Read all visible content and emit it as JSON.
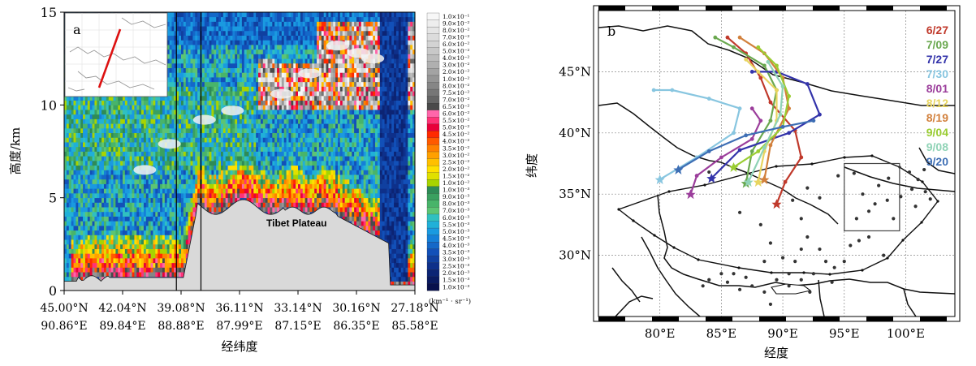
{
  "chart_data": [
    {
      "panel": "a",
      "type": "heatmap",
      "ylabel": "高度/km",
      "xlabel": "经纬度",
      "ylim": [
        0,
        15
      ],
      "y_ticks": [
        "0",
        "5",
        "10",
        "15"
      ],
      "x_ticks": [
        {
          "lat": "45.00°N",
          "lon": "90.86°E"
        },
        {
          "lat": "42.04°N",
          "lon": "89.84°E"
        },
        {
          "lat": "39.08°N",
          "lon": "88.88°E"
        },
        {
          "lat": "36.11°N",
          "lon": "87.99°E"
        },
        {
          "lat": "33.14°N",
          "lon": "87.15°E"
        },
        {
          "lat": "30.16°N",
          "lon": "86.35°E"
        },
        {
          "lat": "27.18°N",
          "lon": "85.58°E"
        }
      ],
      "annotation": "Tibet Plateau",
      "colorbar_unit": "(km⁻¹ · sr⁻¹)",
      "colorbar_levels": [
        {
          "label": "1.0×10⁻¹",
          "color": "#f7f7f7"
        },
        {
          "label": "9.0×10⁻²",
          "color": "#eeeeee"
        },
        {
          "label": "8.0×10⁻²",
          "color": "#e5e5e5"
        },
        {
          "label": "7.0×10⁻²",
          "color": "#dcdcdc"
        },
        {
          "label": "6.0×10⁻²",
          "color": "#d3d3d3"
        },
        {
          "label": "5.0×10⁻²",
          "color": "#c8c8c8"
        },
        {
          "label": "4.0×10⁻²",
          "color": "#bcbcbc"
        },
        {
          "label": "3.0×10⁻²",
          "color": "#b0b0b0"
        },
        {
          "label": "2.0×10⁻²",
          "color": "#a3a3a3"
        },
        {
          "label": "1.0×10⁻²",
          "color": "#959595"
        },
        {
          "label": "8.0×10⁻²",
          "color": "#868686"
        },
        {
          "label": "7.5×10⁻²",
          "color": "#767676"
        },
        {
          "label": "7.0×10⁻²",
          "color": "#656565"
        },
        {
          "label": "6.5×10⁻²",
          "color": "#4a4a4a"
        },
        {
          "label": "6.0×10⁻²",
          "color": "#ff66aa"
        },
        {
          "label": "5.5×10⁻²",
          "color": "#ff3377"
        },
        {
          "label": "5.0×10⁻²",
          "color": "#e8003a"
        },
        {
          "label": "4.5×10⁻²",
          "color": "#ff2a00"
        },
        {
          "label": "4.0×10⁻²",
          "color": "#ff5a00"
        },
        {
          "label": "3.5×10⁻²",
          "color": "#ff8000"
        },
        {
          "label": "3.0×10⁻²",
          "color": "#ffa000"
        },
        {
          "label": "2.5×10⁻²",
          "color": "#ffc000"
        },
        {
          "label": "2.0×10⁻²",
          "color": "#ffe000"
        },
        {
          "label": "1.5×10⁻²",
          "color": "#e0e000"
        },
        {
          "label": "1.0×10⁻²",
          "color": "#a8d400"
        },
        {
          "label": "1.0×10⁻³",
          "color": "#2e8b57"
        },
        {
          "label": "9.0×10⁻³",
          "color": "#3aa060"
        },
        {
          "label": "8.0×10⁻³",
          "color": "#48b46a"
        },
        {
          "label": "7.0×10⁻³",
          "color": "#5cc474"
        },
        {
          "label": "6.0×10⁻³",
          "color": "#30c0c0"
        },
        {
          "label": "5.5×10⁻³",
          "color": "#20b0d8"
        },
        {
          "label": "5.0×10⁻³",
          "color": "#1a9ae0"
        },
        {
          "label": "4.5×10⁻³",
          "color": "#1580d8"
        },
        {
          "label": "4.0×10⁻³",
          "color": "#1468c8"
        },
        {
          "label": "3.5×10⁻³",
          "color": "#1250b8"
        },
        {
          "label": "3.0×10⁻³",
          "color": "#1040a0"
        },
        {
          "label": "2.5×10⁻³",
          "color": "#0e308a"
        },
        {
          "label": "2.0×10⁻³",
          "color": "#0c2474"
        },
        {
          "label": "1.5×10⁻³",
          "color": "#0a1a60"
        },
        {
          "label": "1.0×10⁻³",
          "color": "#08104c"
        }
      ]
    },
    {
      "panel": "b",
      "type": "line",
      "ylabel": "纬度",
      "xlabel": "经度",
      "xlim": [
        75,
        104
      ],
      "ylim": [
        25,
        50
      ],
      "x_ticks": [
        {
          "value": 80,
          "label": "80°E"
        },
        {
          "value": 85,
          "label": "85°E"
        },
        {
          "value": 90,
          "label": "90°E"
        },
        {
          "value": 95,
          "label": "95°E"
        },
        {
          "value": 100,
          "label": "100°E"
        }
      ],
      "y_ticks": [
        {
          "value": 30,
          "label": "30°N"
        },
        {
          "value": 35,
          "label": "35°N"
        },
        {
          "value": 40,
          "label": "40°N"
        },
        {
          "value": 45,
          "label": "45°N"
        }
      ],
      "grid": true,
      "legend_position": "top-right",
      "series": [
        {
          "name": "6/27",
          "color": "#c0392b",
          "points": [
            [
              89.5,
              34.2
            ],
            [
              90.2,
              36.0
            ],
            [
              91.5,
              38.0
            ],
            [
              91.0,
              40.2
            ],
            [
              89.0,
              42.5
            ],
            [
              88.2,
              44.5
            ],
            [
              87.0,
              46.5
            ],
            [
              85.5,
              47.8
            ]
          ]
        },
        {
          "name": "7/09",
          "color": "#6aa84f",
          "points": [
            [
              87.0,
              35.9
            ],
            [
              87.5,
              38.5
            ],
            [
              89.0,
              41.0
            ],
            [
              89.5,
              43.5
            ],
            [
              88.5,
              45.5
            ],
            [
              86.0,
              47.0
            ],
            [
              84.5,
              47.8
            ]
          ]
        },
        {
          "name": "7/27",
          "color": "#3333aa",
          "points": [
            [
              84.2,
              36.3
            ],
            [
              86.5,
              38.6
            ],
            [
              90.5,
              40.0
            ],
            [
              93.0,
              41.5
            ],
            [
              92.0,
              44.0
            ],
            [
              89.5,
              45.0
            ],
            [
              87.5,
              45.0
            ]
          ]
        },
        {
          "name": "7/30",
          "color": "#88c6e0",
          "points": [
            [
              80.0,
              36.2
            ],
            [
              83.0,
              38.0
            ],
            [
              86.0,
              40.0
            ],
            [
              86.5,
              42.0
            ],
            [
              84.0,
              42.8
            ],
            [
              81.0,
              43.5
            ],
            [
              79.5,
              43.5
            ]
          ]
        },
        {
          "name": "8/01",
          "color": "#9b3d9b",
          "points": [
            [
              82.5,
              35.0
            ],
            [
              83.0,
              36.5
            ],
            [
              85.0,
              38.0
            ],
            [
              87.5,
              39.5
            ],
            [
              88.2,
              41.0
            ],
            [
              87.5,
              42.0
            ]
          ]
        },
        {
          "name": "8/12",
          "color": "#e8d560",
          "points": [
            [
              88.0,
              36.0
            ],
            [
              88.5,
              38.5
            ],
            [
              89.5,
              41.0
            ],
            [
              89.5,
              43.5
            ],
            [
              88.0,
              45.0
            ],
            [
              87.0,
              46.0
            ]
          ]
        },
        {
          "name": "8/19",
          "color": "#d2803c",
          "points": [
            [
              88.5,
              36.2
            ],
            [
              89.0,
              39.0
            ],
            [
              90.5,
              42.0
            ],
            [
              90.0,
              44.5
            ],
            [
              88.5,
              46.5
            ],
            [
              86.5,
              47.8
            ]
          ]
        },
        {
          "name": "9/04",
          "color": "#9acd32",
          "points": [
            [
              86.0,
              37.2
            ],
            [
              88.0,
              38.5
            ],
            [
              90.0,
              40.5
            ],
            [
              90.5,
              43.0
            ],
            [
              89.5,
              45.5
            ],
            [
              88.0,
              47.0
            ]
          ]
        },
        {
          "name": "9/08",
          "color": "#8fd3b6",
          "points": [
            [
              87.2,
              36.0
            ],
            [
              88.5,
              38.8
            ],
            [
              89.8,
              41.5
            ],
            [
              90.0,
              43.8
            ],
            [
              88.8,
              45.8
            ]
          ]
        },
        {
          "name": "9/20",
          "color": "#3d6eb4",
          "points": [
            [
              81.5,
              37.0
            ],
            [
              84.0,
              38.5
            ],
            [
              87.0,
              39.8
            ],
            [
              90.0,
              40.5
            ],
            [
              92.5,
              41.0
            ]
          ]
        }
      ],
      "box_region": {
        "lon": [
          95,
          99.5
        ],
        "lat": [
          32,
          37.5
        ]
      },
      "stations": [
        [
          84.0,
          36.8
        ],
        [
          86.5,
          33.5
        ],
        [
          88.2,
          32.5
        ],
        [
          89.0,
          31.0
        ],
        [
          88.5,
          29.5
        ],
        [
          90.0,
          29.8
        ],
        [
          91.0,
          29.5
        ],
        [
          91.5,
          30.5
        ],
        [
          92.0,
          31.5
        ],
        [
          93.0,
          30.5
        ],
        [
          93.5,
          29.5
        ],
        [
          94.2,
          29.0
        ],
        [
          95.0,
          29.5
        ],
        [
          95.5,
          30.8
        ],
        [
          96.2,
          31.2
        ],
        [
          97.0,
          31.5
        ],
        [
          98.2,
          30.0
        ],
        [
          96.0,
          33.0
        ],
        [
          97.0,
          33.6
        ],
        [
          97.5,
          34.2
        ],
        [
          98.5,
          34.5
        ],
        [
          99.0,
          33.0
        ],
        [
          96.5,
          35.0
        ],
        [
          97.8,
          35.7
        ],
        [
          98.6,
          36.3
        ],
        [
          95.8,
          36.7
        ],
        [
          99.6,
          34.8
        ],
        [
          100.5,
          35.4
        ],
        [
          101.0,
          36.2
        ],
        [
          101.6,
          35.2
        ],
        [
          100.3,
          36.8
        ],
        [
          101.5,
          37.0
        ],
        [
          102.0,
          34.6
        ],
        [
          100.8,
          34.0
        ],
        [
          94.5,
          36.5
        ],
        [
          93.0,
          34.7
        ],
        [
          92.0,
          35.5
        ],
        [
          90.8,
          34.5
        ],
        [
          91.5,
          33.0
        ],
        [
          89.0,
          26.0
        ],
        [
          88.5,
          27.0
        ],
        [
          87.5,
          27.5
        ],
        [
          86.5,
          27.2
        ],
        [
          85.5,
          27.8
        ],
        [
          84.0,
          28.0
        ],
        [
          83.5,
          27.5
        ],
        [
          85.0,
          28.5
        ],
        [
          86.0,
          28.5
        ],
        [
          87.0,
          28.2
        ],
        [
          89.5,
          28.0
        ],
        [
          90.5,
          27.5
        ],
        [
          91.5,
          28.0
        ],
        [
          92.5,
          28.5
        ],
        [
          90.5,
          28.5
        ],
        [
          92.2,
          27.0
        ],
        [
          94.0,
          27.8
        ]
      ]
    }
  ],
  "panel_a": {
    "tag": "a"
  },
  "panel_b": {
    "tag": "b"
  },
  "colors": {
    "plateau": "#d9d9d9",
    "sky_blue": "#2050c0",
    "grid": "#888888"
  }
}
